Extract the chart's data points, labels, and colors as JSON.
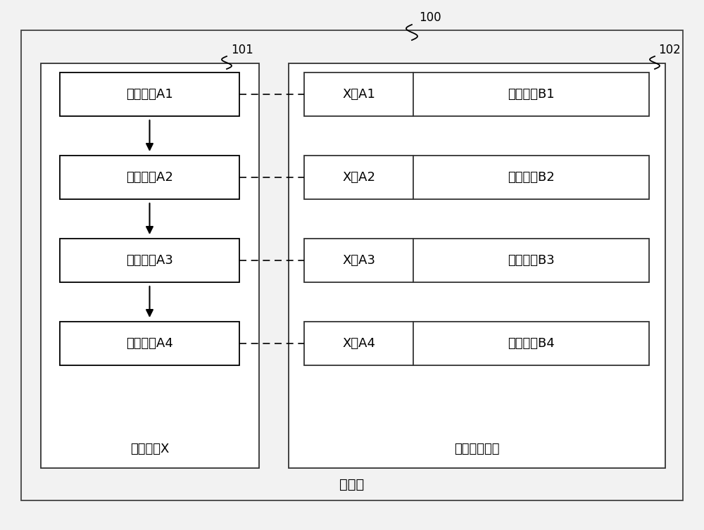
{
  "bg_color": "#f2f2f2",
  "white": "#ffffff",
  "black": "#000000",
  "gray_bg": "#f2f2f2",
  "label_100": "100",
  "label_101": "101",
  "label_102": "102",
  "server_label": "服务器",
  "app_label": "应用软件X",
  "db_label": "目标数据仓库",
  "func_boxes": [
    "程序函数A1",
    "程序函数A2",
    "程序函数A3",
    "程序函数A4"
  ],
  "left_pair_labels": [
    "X，A1",
    "X，A2",
    "X，A3",
    "X，A4"
  ],
  "right_pair_labels": [
    "目标数据B1",
    "目标数据B2",
    "目标数据B3",
    "目标数据B4"
  ],
  "font_size_label": 13,
  "font_size_box": 13,
  "font_size_ref": 12,
  "font_size_server": 14
}
